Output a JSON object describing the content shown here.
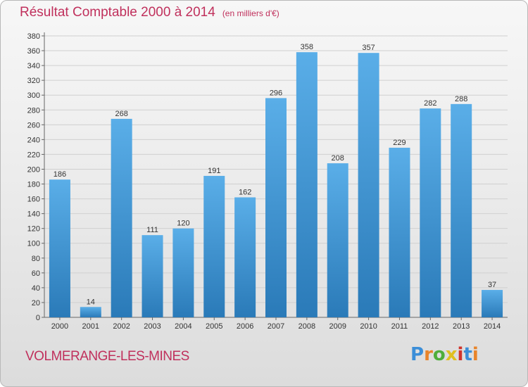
{
  "title": "Résultat Comptable 2000 à 2014",
  "subtitle": "(en milliers d'€)",
  "commune": "VOLMERANGE-LES-MINES",
  "logo": {
    "text": "Proxiti",
    "colors": [
      "#3b8ed8",
      "#e8842a",
      "#4fae3b",
      "#e0c020",
      "#d0332c",
      "#3b8ed8",
      "#e8842a"
    ]
  },
  "colors": {
    "bar_top": "#5aaee8",
    "bar_bottom": "#2a7ab8",
    "title": "#c0305c",
    "grid": "#d0d0d0"
  },
  "chart_data": {
    "type": "bar",
    "categories": [
      "2000",
      "2001",
      "2002",
      "2003",
      "2004",
      "2005",
      "2006",
      "2007",
      "2008",
      "2009",
      "2010",
      "2011",
      "2012",
      "2013",
      "2014"
    ],
    "values": [
      186,
      14,
      268,
      111,
      120,
      191,
      162,
      296,
      358,
      208,
      357,
      229,
      282,
      288,
      37
    ],
    "ylim": [
      0,
      380
    ],
    "ytick_step": 20,
    "grid": true,
    "xlabel": "",
    "ylabel": ""
  }
}
